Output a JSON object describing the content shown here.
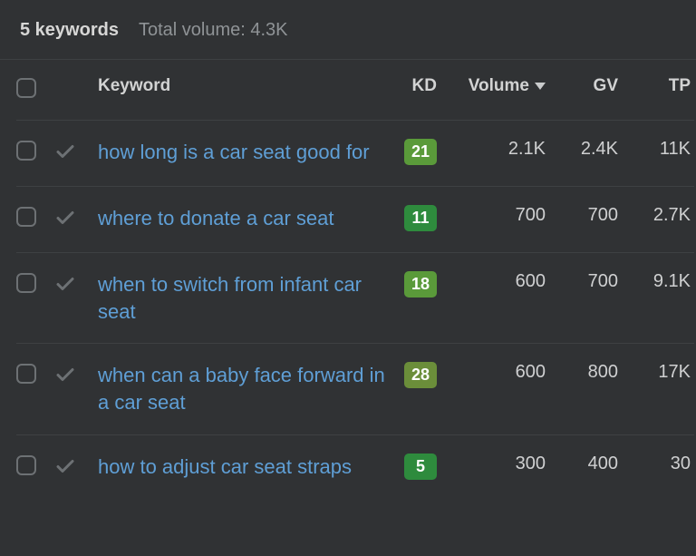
{
  "summary": {
    "count_label": "5 keywords",
    "total_volume_label": "Total volume: 4.3K"
  },
  "headers": {
    "keyword": "Keyword",
    "kd": "KD",
    "volume": "Volume",
    "gv": "GV",
    "tp": "TP"
  },
  "sort": {
    "column": "volume",
    "direction": "desc"
  },
  "kd_colors": {
    "low": "#2e8b3d",
    "mid": "#5a9a3a",
    "high": "#6b8e3a"
  },
  "rows": [
    {
      "keyword": "how long is a car seat good for",
      "kd": "21",
      "kd_tier": "mid",
      "volume": "2.1K",
      "gv": "2.4K",
      "tp": "11K"
    },
    {
      "keyword": "where to donate a car seat",
      "kd": "11",
      "kd_tier": "low",
      "volume": "700",
      "gv": "700",
      "tp": "2.7K"
    },
    {
      "keyword": "when to switch from infant car seat",
      "kd": "18",
      "kd_tier": "mid",
      "volume": "600",
      "gv": "700",
      "tp": "9.1K"
    },
    {
      "keyword": "when can a baby face forward in a car seat",
      "kd": "28",
      "kd_tier": "high",
      "volume": "600",
      "gv": "800",
      "tp": "17K"
    },
    {
      "keyword": "how to adjust car seat straps",
      "kd": "5",
      "kd_tier": "low",
      "volume": "300",
      "gv": "400",
      "tp": "30"
    }
  ]
}
